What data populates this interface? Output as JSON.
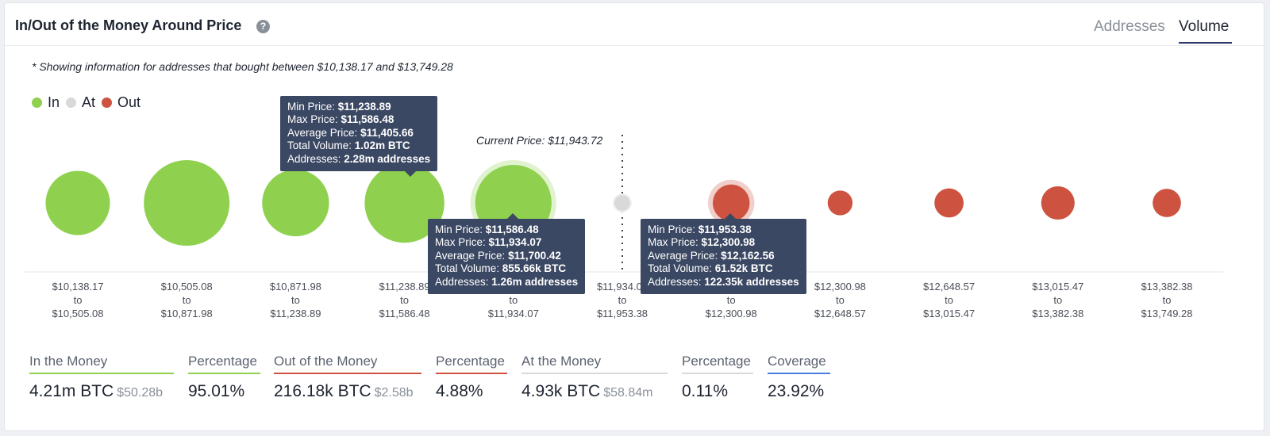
{
  "header": {
    "title": "In/Out of the Money Around Price",
    "help_icon": "?",
    "tabs": [
      {
        "label": "Addresses",
        "active": false
      },
      {
        "label": "Volume",
        "active": true
      }
    ]
  },
  "subtitle": "* Showing information for addresses that bought between $10,138.17 and $13,749.28",
  "legend": {
    "items": [
      {
        "label": "In",
        "color": "#8fd14f"
      },
      {
        "label": "At",
        "color": "#d9d9d9"
      },
      {
        "label": "Out",
        "color": "#cd5340"
      }
    ]
  },
  "current_price": "Current Price: $11,943.72",
  "chart_data": {
    "type": "scatter",
    "x": [
      "$10,138.17 to $10,505.08",
      "$10,505.08 to $10,871.98",
      "$10,871.98 to $11,238.89",
      "$11,238.89 to $11,586.48",
      "$11,586.48 to $11,934.07",
      "$11,934.07 to $11,953.38",
      "$11,953.38 to $12,300.98",
      "$12,300.98 to $12,648.57",
      "$12,648.57 to $13,015.47",
      "$13,015.47 to $13,382.38",
      "$13,382.38 to $13,749.28"
    ],
    "ranges": [
      [
        "$10,138.17",
        "$10,505.08"
      ],
      [
        "$10,505.08",
        "$10,871.98"
      ],
      [
        "$10,871.98",
        "$11,238.89"
      ],
      [
        "$11,238.89",
        "$11,586.48"
      ],
      [
        "$11,586.48",
        "$11,934.07"
      ],
      [
        "$11,934.07",
        "$11,953.38"
      ],
      [
        "$11,953.38",
        "$12,300.98"
      ],
      [
        "$12,300.98",
        "$12,648.57"
      ],
      [
        "$12,648.57",
        "$13,015.47"
      ],
      [
        "$13,015.47",
        "$13,382.38"
      ],
      [
        "$13,382.38",
        "$13,749.28"
      ]
    ],
    "range_joiner": "to",
    "status": [
      "In",
      "In",
      "In",
      "In",
      "In",
      "At",
      "Out",
      "Out",
      "Out",
      "Out",
      "Out"
    ],
    "relative_size": [
      0.75,
      1.0,
      0.78,
      0.93,
      0.89,
      0.2,
      0.43,
      0.29,
      0.34,
      0.39,
      0.33
    ],
    "colors": {
      "In": "#8fd14f",
      "At": "#d9d9d9",
      "Out": "#cd5340"
    },
    "current_price": 11943.72,
    "tooltips": [
      {
        "bin_index": 3,
        "rows": [
          {
            "label": "Min Price:",
            "value": "$11,238.89"
          },
          {
            "label": "Max Price:",
            "value": "$11,586.48"
          },
          {
            "label": "Average Price:",
            "value": "$11,405.66"
          },
          {
            "label": "Total Volume:",
            "value": "1.02m BTC"
          },
          {
            "label": "Addresses:",
            "value": "2.28m addresses"
          }
        ]
      },
      {
        "bin_index": 4,
        "rows": [
          {
            "label": "Min Price:",
            "value": "$11,586.48"
          },
          {
            "label": "Max Price:",
            "value": "$11,934.07"
          },
          {
            "label": "Average Price:",
            "value": "$11,700.42"
          },
          {
            "label": "Total Volume:",
            "value": "855.66k BTC"
          },
          {
            "label": "Addresses:",
            "value": "1.26m addresses"
          }
        ]
      },
      {
        "bin_index": 6,
        "rows": [
          {
            "label": "Min Price:",
            "value": "$11,953.38"
          },
          {
            "label": "Max Price:",
            "value": "$12,300.98"
          },
          {
            "label": "Average Price:",
            "value": "$12,162.56"
          },
          {
            "label": "Total Volume:",
            "value": "61.52k BTC"
          },
          {
            "label": "Addresses:",
            "value": "122.35k addresses"
          }
        ]
      }
    ]
  },
  "summary": [
    {
      "label": "In the Money",
      "value": "4.21m BTC",
      "sub": "$50.28b",
      "color": "#8fd14f"
    },
    {
      "label": "Percentage",
      "value": "95.01%",
      "sub": "",
      "color": "#8fd14f"
    },
    {
      "label": "Out of the Money",
      "value": "216.18k BTC",
      "sub": "$2.58b",
      "color": "#cd5340"
    },
    {
      "label": "Percentage",
      "value": "4.88%",
      "sub": "",
      "color": "#cd5340"
    },
    {
      "label": "At the Money",
      "value": "4.93k BTC",
      "sub": "$58.84m",
      "color": "#d9d9d9"
    },
    {
      "label": "Percentage",
      "value": "0.11%",
      "sub": "",
      "color": "#d9d9d9"
    },
    {
      "label": "Coverage",
      "value": "23.92%",
      "sub": "",
      "color": "#4a7de0"
    }
  ]
}
